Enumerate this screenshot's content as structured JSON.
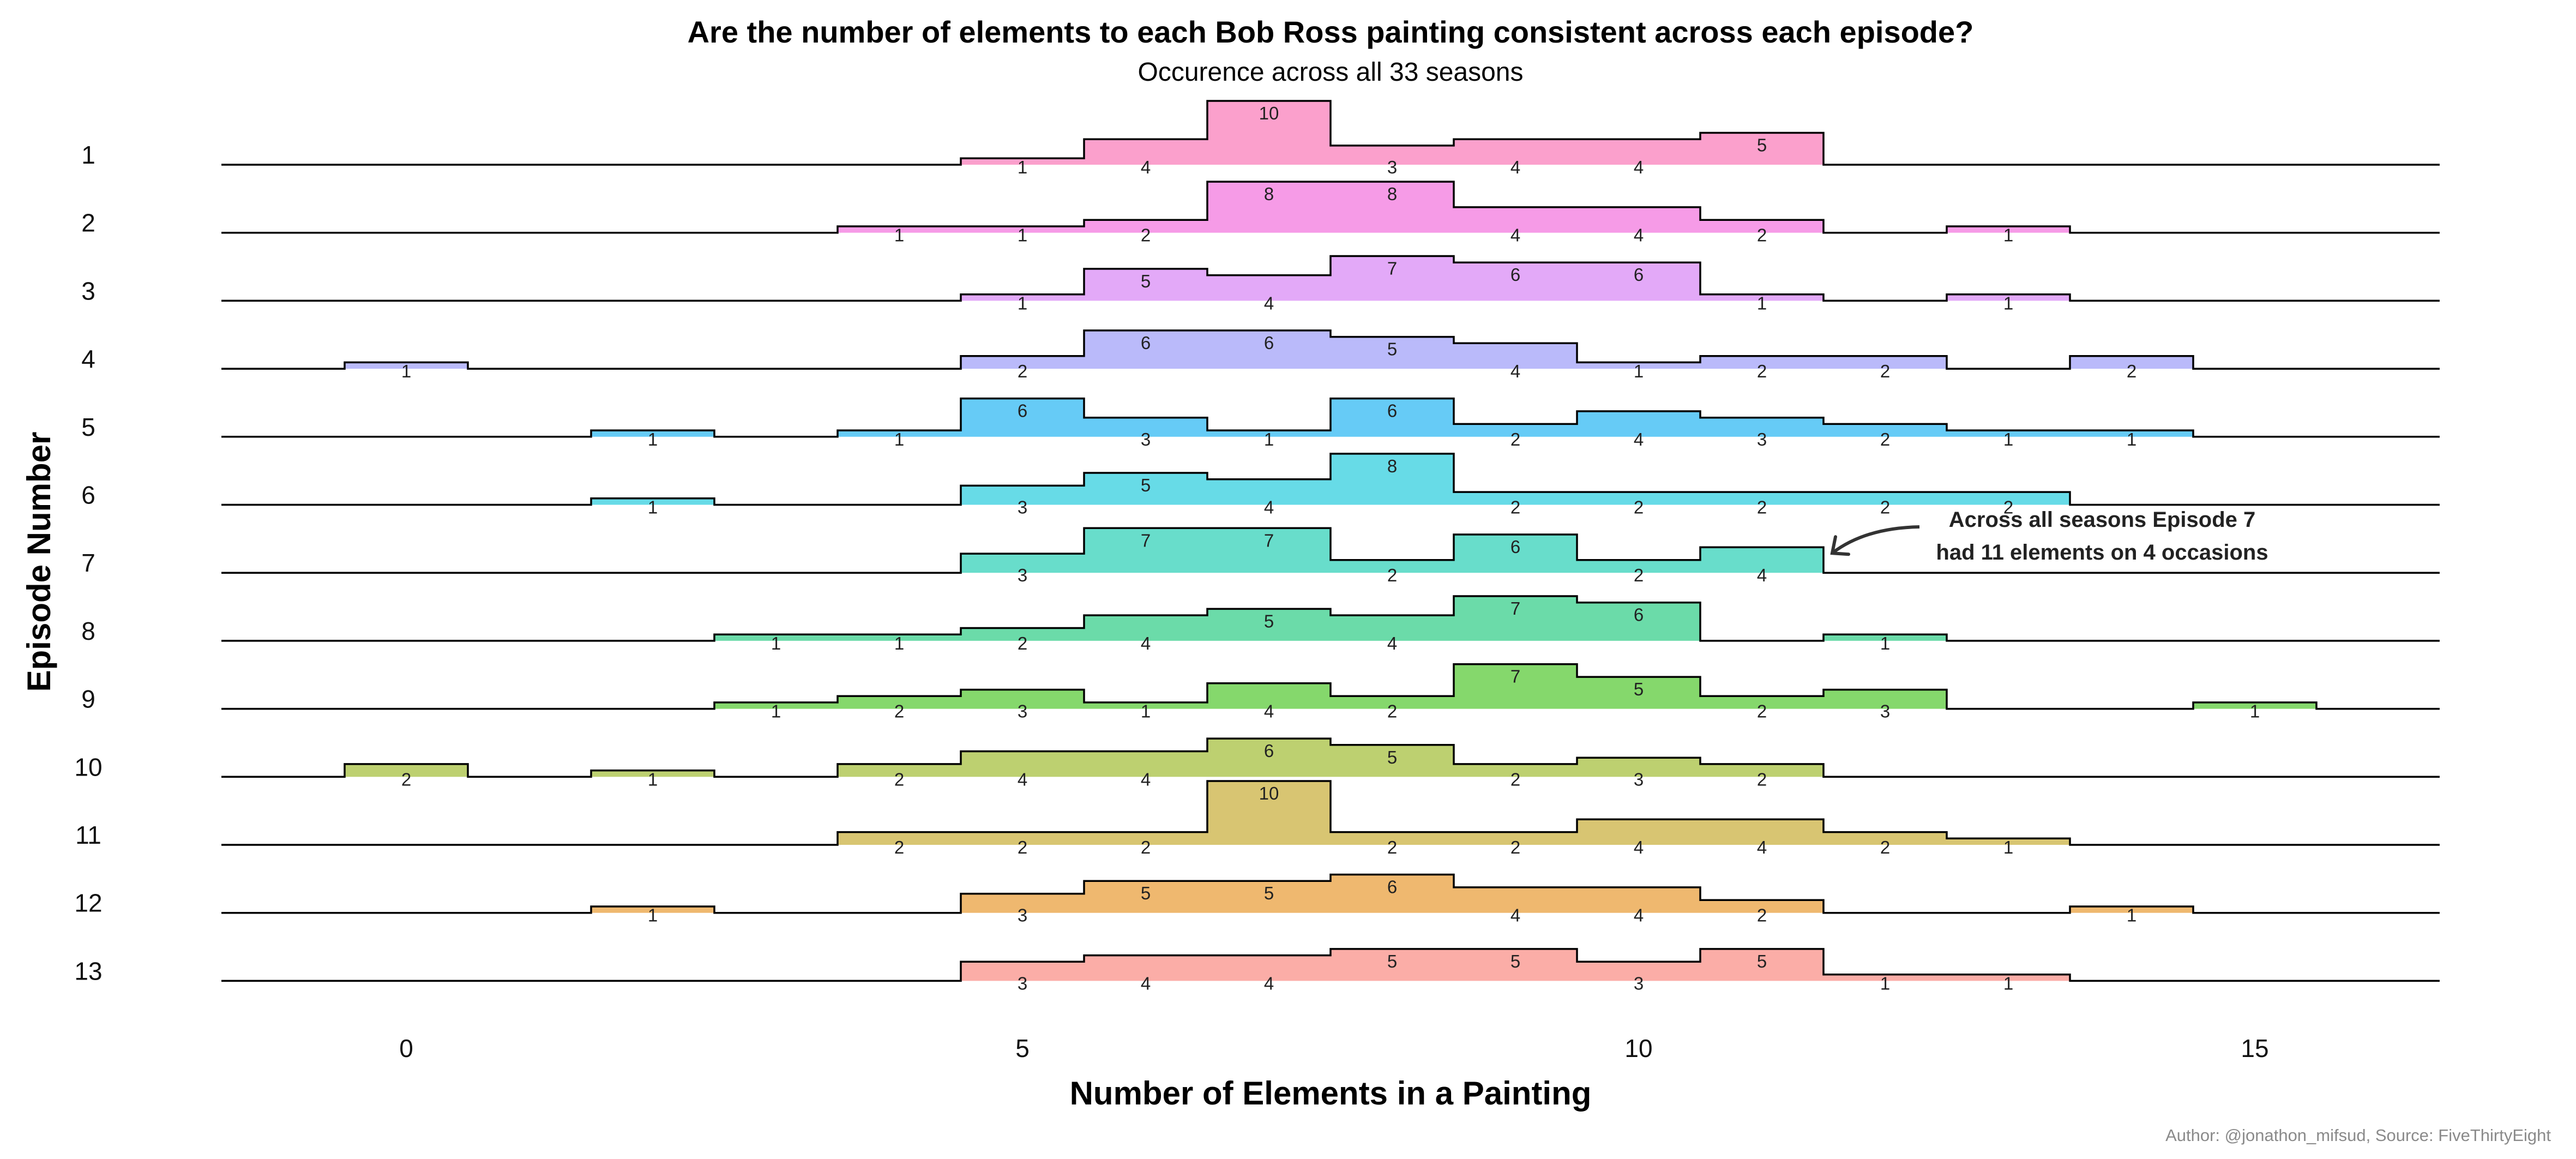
{
  "chart_data": {
    "type": "area",
    "title": "Are the number of elements to each Bob Ross painting consistent across each episode?",
    "subtitle": "Occurence across all 33 seasons",
    "xlabel": "Number of Elements in a Painting",
    "ylabel": "Episode Number",
    "xlim": [
      -1.5,
      16.5
    ],
    "xticks": [
      0,
      5,
      10,
      15
    ],
    "caption": "Author: @jonathon_mifsud, Source: FiveThirtyEight",
    "annotation": {
      "lines": [
        "Across all seasons Episode 7",
        "had 11 elements on 4 occasions"
      ],
      "episode": "7",
      "x": 11
    },
    "series": [
      {
        "name": "1",
        "color": "#fb9bc9",
        "x": [
          5,
          6,
          7,
          8,
          9,
          10,
          11
        ],
        "values": [
          1,
          4,
          10,
          3,
          4,
          4,
          5
        ]
      },
      {
        "name": "2",
        "color": "#f596e6",
        "x": [
          4,
          5,
          6,
          7,
          8,
          9,
          10,
          11,
          13
        ],
        "values": [
          1,
          1,
          2,
          8,
          8,
          4,
          4,
          2,
          1
        ]
      },
      {
        "name": "3",
        "color": "#e2a4f8",
        "x": [
          5,
          6,
          7,
          8,
          9,
          10,
          11,
          13
        ],
        "values": [
          1,
          5,
          4,
          7,
          6,
          6,
          1,
          1
        ]
      },
      {
        "name": "4",
        "color": "#b6b6fa",
        "x": [
          0,
          5,
          6,
          7,
          8,
          9,
          10,
          11,
          12,
          14
        ],
        "values": [
          1,
          2,
          6,
          6,
          5,
          4,
          1,
          2,
          2,
          2
        ]
      },
      {
        "name": "5",
        "color": "#5ec8f6",
        "x": [
          2,
          4,
          5,
          6,
          7,
          8,
          9,
          10,
          11,
          12,
          13,
          14
        ],
        "values": [
          1,
          1,
          6,
          3,
          1,
          6,
          2,
          4,
          3,
          2,
          1,
          1
        ]
      },
      {
        "name": "6",
        "color": "#5fd9e6",
        "x": [
          2,
          5,
          6,
          7,
          8,
          9,
          10,
          11,
          12,
          13
        ],
        "values": [
          1,
          3,
          5,
          4,
          8,
          2,
          2,
          2,
          2,
          2
        ]
      },
      {
        "name": "7",
        "color": "#60dbc8",
        "x": [
          5,
          6,
          7,
          8,
          9,
          10,
          11
        ],
        "values": [
          3,
          7,
          7,
          2,
          6,
          2,
          4
        ]
      },
      {
        "name": "8",
        "color": "#63d9a4",
        "x": [
          3,
          4,
          5,
          6,
          7,
          8,
          9,
          10,
          12
        ],
        "values": [
          1,
          1,
          2,
          4,
          5,
          4,
          7,
          6,
          1
        ]
      },
      {
        "name": "9",
        "color": "#7ed664",
        "x": [
          3,
          4,
          5,
          6,
          7,
          8,
          9,
          10,
          11,
          12,
          15
        ],
        "values": [
          1,
          2,
          3,
          1,
          4,
          2,
          7,
          5,
          2,
          3,
          1
        ]
      },
      {
        "name": "10",
        "color": "#b9cd68",
        "x": [
          0,
          2,
          4,
          5,
          6,
          7,
          8,
          9,
          10,
          11
        ],
        "values": [
          2,
          1,
          2,
          4,
          4,
          6,
          5,
          2,
          3,
          2
        ]
      },
      {
        "name": "11",
        "color": "#d6c26a",
        "x": [
          4,
          5,
          6,
          7,
          8,
          9,
          10,
          11,
          12,
          13
        ],
        "values": [
          2,
          2,
          2,
          10,
          2,
          2,
          4,
          4,
          2,
          1
        ]
      },
      {
        "name": "12",
        "color": "#eeb467",
        "x": [
          2,
          5,
          6,
          7,
          8,
          9,
          10,
          11,
          14
        ],
        "values": [
          1,
          3,
          5,
          5,
          6,
          4,
          4,
          2,
          1
        ]
      },
      {
        "name": "13",
        "color": "#fba9a2",
        "x": [
          5,
          6,
          7,
          8,
          9,
          10,
          11,
          12,
          13
        ],
        "values": [
          3,
          4,
          4,
          5,
          5,
          3,
          5,
          1,
          1
        ]
      }
    ]
  }
}
